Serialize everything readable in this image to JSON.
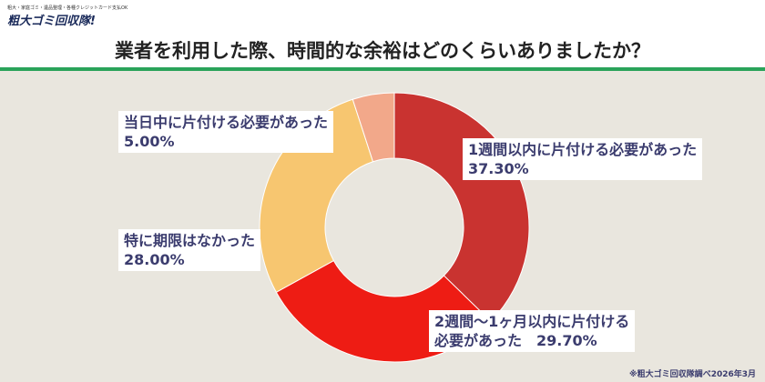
{
  "logo": {
    "tagline": "粗大・家庭ゴミ・遺品整理・各種クレジットカード支払OK",
    "name": "粗大ゴミ回収隊!"
  },
  "chart_data": {
    "type": "pie",
    "donut": true,
    "title": "業者を利用した際、時間的な余裕はどのくらいありましたか？",
    "slices": [
      {
        "label": "1週間以内に片付ける必要があった",
        "value": 37.3,
        "display": "37.30%",
        "color": "#c93330"
      },
      {
        "label": "2週間～1ヶ月以内に片付ける必要があった",
        "value": 29.7,
        "display": "29.70%",
        "color": "#ee1c14"
      },
      {
        "label": "特に期限はなかった",
        "value": 28.0,
        "display": "28.00%",
        "color": "#f7c670"
      },
      {
        "label": "当日中に片付ける必要があった",
        "value": 5.0,
        "display": "5.00%",
        "color": "#f2a88a"
      }
    ]
  },
  "labels": [
    "1週間以内に片付ける必要があった\n37.30%",
    "2週間～1ヶ月以内に片付ける\n必要があった　29.70%",
    "特に期限はなかった\n28.00%",
    "当日中に片付ける必要があった\n5.00%"
  ],
  "footer": "※粗大ゴミ回収隊調べ2026年3月"
}
